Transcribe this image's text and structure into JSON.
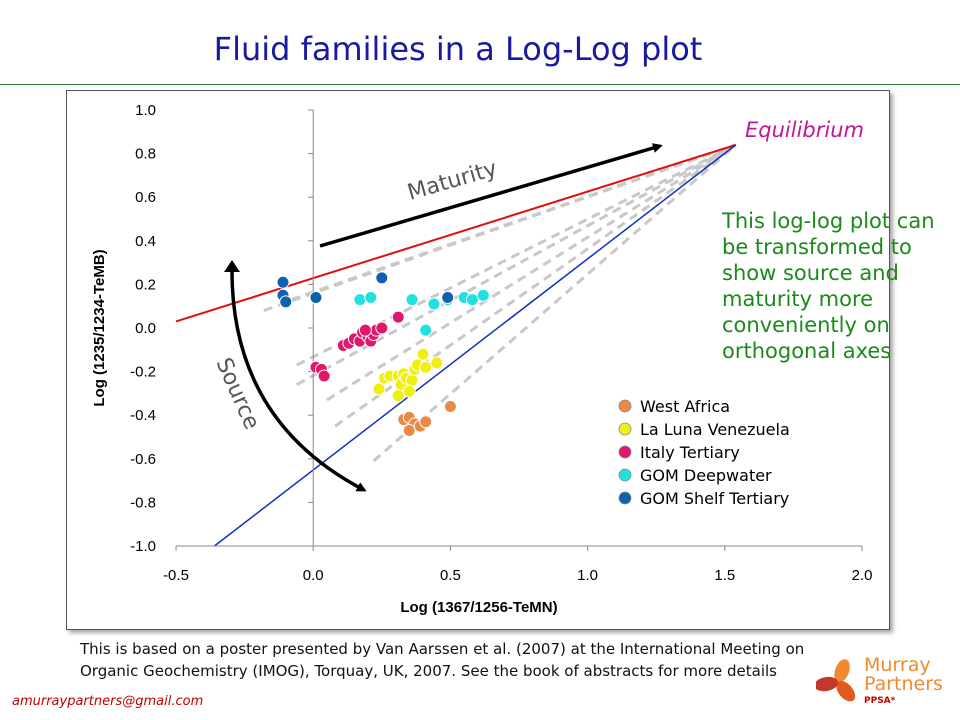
{
  "page": {
    "title": "Fluid families in a Log-Log plot",
    "side_note": "This log-log plot can be transformed to show source and maturity more conveniently on orthogonal axes",
    "caption": "This is based on a poster presented by Van Aarssen et al. (2007) at the International Meeting on Organic Geochemistry (IMOG), Torquay, UK, 2007. See the book of abstracts for more details",
    "email": "amurraypartners@gmail.com",
    "logo_line1": "Murray",
    "logo_line2": "Partners",
    "logo_sub": "PPSA*",
    "colors": {
      "title": "#1a1aa0",
      "note": "#1b8a1b",
      "equilibrium": "#c0179c",
      "red_line": "#e01010",
      "blue_line": "#1030c0"
    }
  },
  "chart_data": {
    "type": "scatter",
    "xlabel": "Log (1367/1256-TeMN)",
    "ylabel": "Log (1235/1234-TeMB)",
    "xlim": [
      -0.5,
      2.0
    ],
    "ylim": [
      -1.0,
      1.0
    ],
    "xticks": [
      -0.5,
      0.0,
      0.5,
      1.0,
      1.5,
      2.0
    ],
    "yticks": [
      -1.0,
      -0.8,
      -0.6,
      -0.4,
      -0.2,
      0.0,
      0.2,
      0.4,
      0.6,
      0.8,
      1.0
    ],
    "grid": false,
    "legend_position": "lower-right",
    "annotations": {
      "equilibrium": "Equilibrium",
      "maturity": "Maturity",
      "source": "Source"
    },
    "equilibrium_point": [
      1.54,
      0.84
    ],
    "lines": [
      {
        "color": "#e01010",
        "from": [
          -0.5,
          0.03
        ],
        "to": [
          1.54,
          0.84
        ]
      },
      {
        "color": "#1030c0",
        "from": [
          -0.36,
          -1.0
        ],
        "to": [
          1.54,
          0.84
        ]
      }
    ],
    "dashed_lines": [
      {
        "from": [
          -0.18,
          0.08
        ],
        "to": [
          1.54,
          0.84
        ]
      },
      {
        "from": [
          -0.08,
          0.13
        ],
        "to": [
          1.54,
          0.84
        ]
      },
      {
        "from": [
          -0.06,
          -0.17
        ],
        "to": [
          1.54,
          0.84
        ]
      },
      {
        "from": [
          -0.06,
          -0.26
        ],
        "to": [
          1.54,
          0.84
        ]
      },
      {
        "from": [
          0.05,
          -0.33
        ],
        "to": [
          1.54,
          0.84
        ]
      },
      {
        "from": [
          0.08,
          -0.45
        ],
        "to": [
          1.54,
          0.84
        ]
      },
      {
        "from": [
          0.22,
          -0.61
        ],
        "to": [
          1.54,
          0.84
        ]
      }
    ],
    "series": [
      {
        "name": "West Africa",
        "color": "#e98a47",
        "points": [
          [
            0.33,
            -0.42
          ],
          [
            0.35,
            -0.41
          ],
          [
            0.37,
            -0.44
          ],
          [
            0.35,
            -0.47
          ],
          [
            0.39,
            -0.45
          ],
          [
            0.41,
            -0.43
          ],
          [
            0.5,
            -0.36
          ]
        ]
      },
      {
        "name": "La Luna Venezuela",
        "color": "#f0f010",
        "points": [
          [
            0.24,
            -0.28
          ],
          [
            0.26,
            -0.23
          ],
          [
            0.28,
            -0.22
          ],
          [
            0.31,
            -0.22
          ],
          [
            0.33,
            -0.21
          ],
          [
            0.32,
            -0.26
          ],
          [
            0.34,
            -0.23
          ],
          [
            0.36,
            -0.24
          ],
          [
            0.37,
            -0.19
          ],
          [
            0.38,
            -0.17
          ],
          [
            0.4,
            -0.12
          ],
          [
            0.41,
            -0.18
          ],
          [
            0.45,
            -0.16
          ],
          [
            0.31,
            -0.31
          ],
          [
            0.35,
            -0.29
          ]
        ]
      },
      {
        "name": "Italy Tertiary",
        "color": "#e0186c",
        "points": [
          [
            0.01,
            -0.18
          ],
          [
            0.03,
            -0.19
          ],
          [
            0.04,
            -0.22
          ],
          [
            0.11,
            -0.08
          ],
          [
            0.13,
            -0.07
          ],
          [
            0.15,
            -0.05
          ],
          [
            0.17,
            -0.06
          ],
          [
            0.18,
            -0.02
          ],
          [
            0.2,
            -0.04
          ],
          [
            0.21,
            -0.06
          ],
          [
            0.22,
            -0.03
          ],
          [
            0.23,
            -0.01
          ],
          [
            0.25,
            0.0
          ],
          [
            0.19,
            -0.01
          ],
          [
            0.31,
            0.05
          ]
        ]
      },
      {
        "name": "GOM Deepwater",
        "color": "#20e0e0",
        "points": [
          [
            0.17,
            0.13
          ],
          [
            0.21,
            0.14
          ],
          [
            0.36,
            0.13
          ],
          [
            0.41,
            -0.01
          ],
          [
            0.44,
            0.11
          ],
          [
            0.49,
            0.13
          ],
          [
            0.55,
            0.14
          ],
          [
            0.58,
            0.13
          ],
          [
            0.62,
            0.15
          ]
        ]
      },
      {
        "name": "GOM Shelf Tertiary",
        "color": "#1060b0",
        "points": [
          [
            -0.11,
            0.21
          ],
          [
            -0.11,
            0.15
          ],
          [
            -0.1,
            0.12
          ],
          [
            0.01,
            0.14
          ],
          [
            0.25,
            0.23
          ],
          [
            0.49,
            0.14
          ]
        ]
      }
    ]
  }
}
